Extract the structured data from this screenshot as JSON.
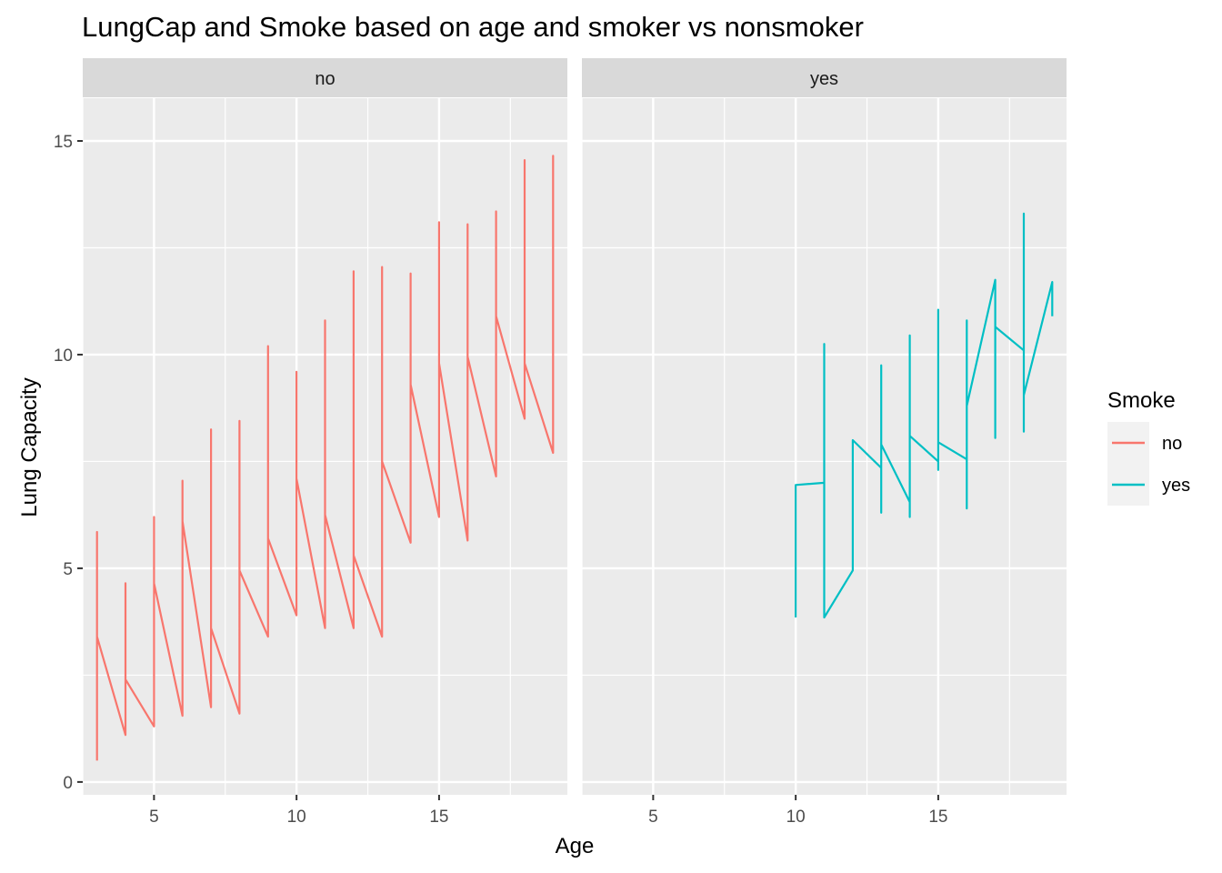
{
  "chart_data": {
    "type": "line",
    "title": "LungCap and Smoke based on age and smoker vs nonsmoker",
    "xlabel": "Age",
    "ylabel": "Lung Capacity",
    "xlim": [
      2.5,
      19.5
    ],
    "ylim": [
      -0.3,
      16.0
    ],
    "x_ticks": [
      5,
      10,
      15
    ],
    "y_ticks": [
      0,
      5,
      10,
      15
    ],
    "grid": true,
    "legend": {
      "title": "Smoke",
      "placement": "right",
      "entries": [
        {
          "label": "no",
          "color": "#F8766D"
        },
        {
          "label": "yes",
          "color": "#00BFC4"
        }
      ]
    },
    "facets": [
      {
        "strip_label": "no",
        "series": "no",
        "color": "#F8766D",
        "points": [
          [
            3,
            0.5
          ],
          [
            3,
            5.85
          ],
          [
            3,
            3.4
          ],
          [
            4,
            1.1
          ],
          [
            4,
            4.65
          ],
          [
            4,
            2.4
          ],
          [
            5,
            1.3
          ],
          [
            5,
            6.2
          ],
          [
            5,
            4.65
          ],
          [
            6,
            1.55
          ],
          [
            6,
            7.05
          ],
          [
            6,
            6.1
          ],
          [
            7,
            1.75
          ],
          [
            7,
            8.25
          ],
          [
            7,
            7.35
          ],
          [
            7,
            3.6
          ],
          [
            8,
            1.6
          ],
          [
            8,
            8.45
          ],
          [
            8,
            4.95
          ],
          [
            9,
            3.4
          ],
          [
            9,
            10.2
          ],
          [
            9,
            9.0
          ],
          [
            9,
            5.7
          ],
          [
            10,
            3.9
          ],
          [
            10,
            9.6
          ],
          [
            10,
            5.95
          ],
          [
            10,
            7.1
          ],
          [
            11,
            3.6
          ],
          [
            11,
            10.8
          ],
          [
            11,
            7.05
          ],
          [
            11,
            6.25
          ],
          [
            12,
            3.6
          ],
          [
            12,
            11.95
          ],
          [
            12,
            6.5
          ],
          [
            12,
            5.3
          ],
          [
            13,
            3.4
          ],
          [
            13,
            12.05
          ],
          [
            13,
            9.5
          ],
          [
            13,
            7.5
          ],
          [
            14,
            5.6
          ],
          [
            14,
            11.9
          ],
          [
            14,
            11.0
          ],
          [
            14,
            9.3
          ],
          [
            15,
            6.2
          ],
          [
            15,
            13.1
          ],
          [
            15,
            8.85
          ],
          [
            15,
            9.8
          ],
          [
            16,
            5.65
          ],
          [
            16,
            13.05
          ],
          [
            16,
            9.55
          ],
          [
            16,
            9.95
          ],
          [
            17,
            7.15
          ],
          [
            17,
            13.35
          ],
          [
            17,
            10.9
          ],
          [
            18,
            8.5
          ],
          [
            18,
            14.55
          ],
          [
            18,
            12.25
          ],
          [
            18,
            9.8
          ],
          [
            19,
            7.7
          ],
          [
            19,
            14.65
          ],
          [
            19,
            11.5
          ]
        ]
      },
      {
        "strip_label": "yes",
        "series": "yes",
        "color": "#00BFC4",
        "points": [
          [
            10,
            3.85
          ],
          [
            10,
            6.95
          ],
          [
            11,
            7.0
          ],
          [
            11,
            10.25
          ],
          [
            11,
            3.85
          ],
          [
            12,
            4.95
          ],
          [
            12,
            8.0
          ],
          [
            13,
            7.35
          ],
          [
            13,
            9.75
          ],
          [
            13,
            6.3
          ],
          [
            13,
            7.9
          ],
          [
            14,
            6.55
          ],
          [
            14,
            10.45
          ],
          [
            14,
            6.2
          ],
          [
            14,
            8.1
          ],
          [
            15,
            7.5
          ],
          [
            15,
            11.05
          ],
          [
            15,
            7.3
          ],
          [
            15,
            7.95
          ],
          [
            16,
            7.55
          ],
          [
            16,
            10.8
          ],
          [
            16,
            6.4
          ],
          [
            16,
            8.8
          ],
          [
            17,
            11.75
          ],
          [
            17,
            8.05
          ],
          [
            17,
            10.65
          ],
          [
            18,
            10.1
          ],
          [
            18,
            13.3
          ],
          [
            18,
            8.2
          ],
          [
            18,
            9.05
          ],
          [
            19,
            11.7
          ],
          [
            19,
            10.9
          ]
        ]
      }
    ]
  }
}
